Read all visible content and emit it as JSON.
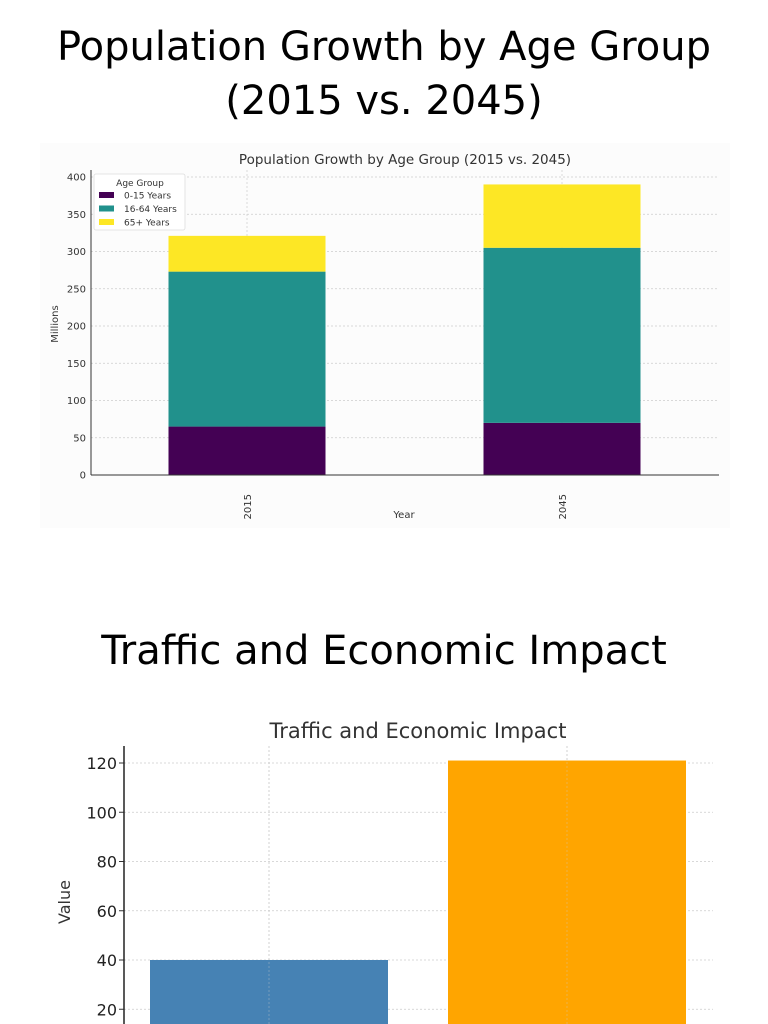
{
  "slides": [
    {
      "title_line1": "Population Growth by Age Group",
      "title_line2": "(2015 vs. 2045)"
    },
    {
      "title": "Traffic and Economic Impact"
    }
  ],
  "chart_data": [
    {
      "type": "bar",
      "stacked": true,
      "title": "Population Growth by Age Group (2015 vs. 2045)",
      "xlabel": "Year",
      "ylabel": "Millions",
      "categories": [
        "2015",
        "2045"
      ],
      "ylim": [
        0,
        410
      ],
      "yticks": [
        0,
        50,
        100,
        150,
        200,
        250,
        300,
        350,
        400
      ],
      "grid": true,
      "legend": {
        "title": "Age Group",
        "placement": "top-left"
      },
      "series": [
        {
          "name": "0-15 Years",
          "values": [
            65,
            70
          ],
          "color": "#440154"
        },
        {
          "name": "16-64 Years",
          "values": [
            208,
            235
          ],
          "color": "#21918c"
        },
        {
          "name": "65+ Years",
          "values": [
            48,
            85
          ],
          "color": "#fde725"
        }
      ]
    },
    {
      "type": "bar",
      "title": "Traffic and Economic Impact",
      "xlabel": "",
      "ylabel": "Value",
      "ylim": [
        0,
        127
      ],
      "yticks": [
        20,
        40,
        60,
        80,
        100,
        120
      ],
      "grid": true,
      "values": [
        40,
        121
      ],
      "colors": [
        "#4682b4",
        "#ffa500"
      ]
    }
  ]
}
